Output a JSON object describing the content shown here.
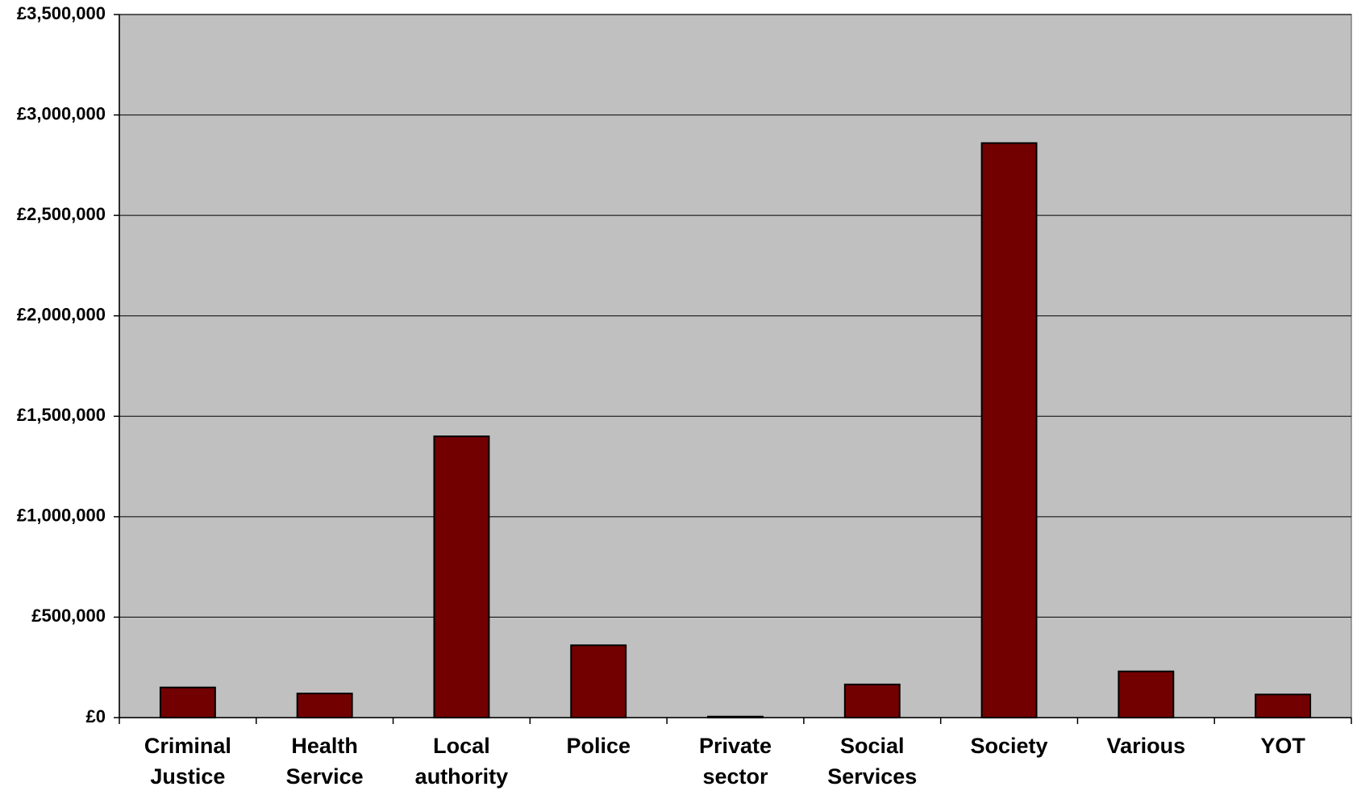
{
  "chart_data": {
    "type": "bar",
    "categories": [
      "Criminal Justice",
      "Health Service",
      "Local authority",
      "Police",
      "Private sector",
      "Social Services",
      "Society",
      "Various",
      "YOT"
    ],
    "values": [
      150000,
      120000,
      1400000,
      360000,
      5000,
      165000,
      2860000,
      230000,
      115000
    ],
    "color": "#730000",
    "ylim": [
      0,
      3500000
    ],
    "yticks": [
      {
        "value": 0,
        "label": "£0"
      },
      {
        "value": 500000,
        "label": "£500,000"
      },
      {
        "value": 1000000,
        "label": "£1,000,000"
      },
      {
        "value": 1500000,
        "label": "£1,500,000"
      },
      {
        "value": 2000000,
        "label": "£2,000,000"
      },
      {
        "value": 2500000,
        "label": "£2,500,000"
      },
      {
        "value": 3000000,
        "label": "£3,000,000"
      },
      {
        "value": 3500000,
        "label": "£3,500,000"
      }
    ],
    "grid": true
  }
}
